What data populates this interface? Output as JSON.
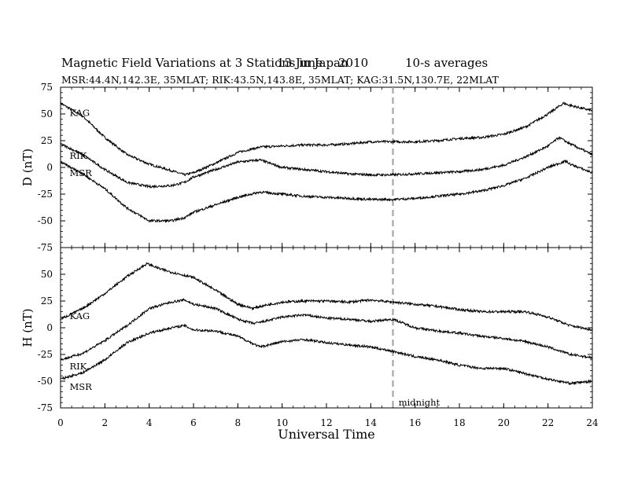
{
  "header": {
    "title": "Magnetic Field Variations at 3 Stations in Japan",
    "date": "13 June",
    "year": "2010",
    "averaging": "10-s averages",
    "stations": "MSR:44.4N,142.3E, 35MLAT;  RIK:43.5N,143.8E, 35MLAT;  KAG:31.5N,130.7E, 22MLAT"
  },
  "chart_data": [
    {
      "type": "line",
      "ylabel": "D (nT)",
      "xlabel": "",
      "xlim": [
        0,
        24
      ],
      "ylim": [
        -75,
        75
      ],
      "x_ticks": [
        0,
        2,
        4,
        6,
        8,
        10,
        12,
        14,
        16,
        18,
        20,
        22,
        24
      ],
      "x_tick_labels": [
        "",
        "",
        "",
        "",
        "",
        "",
        "",
        "",
        "",
        "",
        "",
        "",
        ""
      ],
      "y_ticks": [
        -75,
        -50,
        -25,
        0,
        25,
        50,
        75
      ],
      "y_tick_labels": [
        "-75",
        "-50",
        "-25",
        "0",
        "25",
        "50",
        "75"
      ],
      "series": [
        {
          "name": "KAG",
          "x": [
            0,
            1,
            2,
            3,
            4,
            5,
            5.6,
            6,
            7,
            8,
            9,
            10,
            11,
            12,
            13,
            14,
            15,
            16,
            17,
            18,
            19,
            20,
            21,
            22,
            22.7,
            23,
            24
          ],
          "values": [
            60,
            48,
            28,
            12,
            3,
            -3,
            -7,
            -5,
            4,
            14,
            19,
            20,
            21,
            21,
            22,
            24,
            24,
            24,
            25,
            27,
            28,
            31,
            38,
            50,
            60,
            58,
            53
          ]
        },
        {
          "name": "RIK",
          "x": [
            0,
            1,
            2,
            3,
            4,
            5,
            5.6,
            6,
            7,
            8,
            9,
            10,
            11,
            12,
            13,
            14,
            15,
            16,
            17,
            18,
            19,
            20,
            21,
            22,
            22.5,
            23,
            24
          ],
          "values": [
            22,
            12,
            -2,
            -14,
            -18,
            -17,
            -14,
            -9,
            -2,
            5,
            7,
            0,
            -2,
            -4,
            -6,
            -7,
            -7,
            -6,
            -5,
            -4,
            -2,
            2,
            10,
            20,
            28,
            22,
            12
          ]
        },
        {
          "name": "MSR",
          "x": [
            0,
            1,
            2,
            3,
            4,
            5,
            5.6,
            6,
            7,
            8,
            9,
            10,
            11,
            12,
            13,
            14,
            15,
            16,
            17,
            18,
            19,
            20,
            21,
            22,
            22.8,
            23,
            24
          ],
          "values": [
            5,
            -6,
            -20,
            -38,
            -50,
            -50,
            -47,
            -42,
            -35,
            -28,
            -23,
            -25,
            -27,
            -28,
            -29,
            -30,
            -30,
            -29,
            -27,
            -25,
            -22,
            -17,
            -10,
            0,
            6,
            3,
            -5
          ]
        }
      ],
      "annotations": [
        {
          "text": "KAG",
          "x": 0.3,
          "y": 51
        },
        {
          "text": "RIK",
          "x": 0.3,
          "y": 11
        },
        {
          "text": "MSR",
          "x": 0.3,
          "y": -5
        }
      ],
      "vline": {
        "x": 15,
        "style": "dashed"
      },
      "grid": false
    },
    {
      "type": "line",
      "ylabel": "H (nT)",
      "xlabel": "Universal Time",
      "xlim": [
        0,
        24
      ],
      "ylim": [
        -75,
        75
      ],
      "x_ticks": [
        0,
        2,
        4,
        6,
        8,
        10,
        12,
        14,
        16,
        18,
        20,
        22,
        24
      ],
      "x_tick_labels": [
        "0",
        "2",
        "4",
        "6",
        "8",
        "10",
        "12",
        "14",
        "16",
        "18",
        "20",
        "22",
        "24"
      ],
      "y_ticks": [
        -75,
        -50,
        -25,
        0,
        25,
        50
      ],
      "y_tick_labels": [
        "-75",
        "-50",
        "-25",
        "0",
        "25",
        "50"
      ],
      "series": [
        {
          "name": "KAG",
          "x": [
            0,
            1,
            2,
            3,
            3.9,
            4.5,
            5,
            6,
            7,
            8,
            8.7,
            9,
            10,
            11,
            12,
            13,
            14,
            15,
            16,
            17,
            18,
            19,
            20,
            21,
            22,
            23,
            24
          ],
          "values": [
            8,
            18,
            32,
            48,
            60,
            55,
            52,
            47,
            35,
            22,
            18,
            20,
            24,
            25,
            25,
            24,
            26,
            24,
            22,
            20,
            17,
            15,
            15,
            15,
            10,
            2,
            -2
          ]
        },
        {
          "name": "RIK",
          "x": [
            0,
            1,
            2,
            3,
            4,
            5,
            5.6,
            6,
            7,
            8,
            8.7,
            9,
            10,
            11,
            12,
            13,
            14,
            15,
            16,
            17,
            18,
            19,
            20,
            21,
            22,
            23,
            24
          ],
          "values": [
            -30,
            -24,
            -12,
            2,
            18,
            24,
            26,
            22,
            18,
            8,
            4,
            5,
            10,
            12,
            9,
            8,
            6,
            8,
            0,
            -3,
            -5,
            -8,
            -10,
            -13,
            -18,
            -25,
            -28
          ]
        },
        {
          "name": "MSR",
          "x": [
            0,
            1,
            2,
            3,
            4,
            5,
            5.6,
            6,
            7,
            8,
            8.7,
            9,
            10,
            11,
            12,
            13,
            14,
            15,
            16,
            17,
            18,
            19,
            20,
            21,
            22,
            23,
            24
          ],
          "values": [
            -48,
            -42,
            -30,
            -14,
            -5,
            0,
            2,
            -2,
            -3,
            -8,
            -15,
            -18,
            -13,
            -11,
            -14,
            -16,
            -18,
            -22,
            -27,
            -30,
            -35,
            -38,
            -38,
            -43,
            -48,
            -52,
            -50
          ]
        }
      ],
      "annotations": [
        {
          "text": "KAG",
          "x": 0.3,
          "y": 11
        },
        {
          "text": "RIK",
          "x": 0.3,
          "y": -36
        },
        {
          "text": "MSR",
          "x": 0.3,
          "y": -55
        },
        {
          "text": "midnight",
          "x": 15.15,
          "y": -70
        }
      ],
      "vline": {
        "x": 15,
        "style": "dashed"
      },
      "grid": false
    }
  ]
}
